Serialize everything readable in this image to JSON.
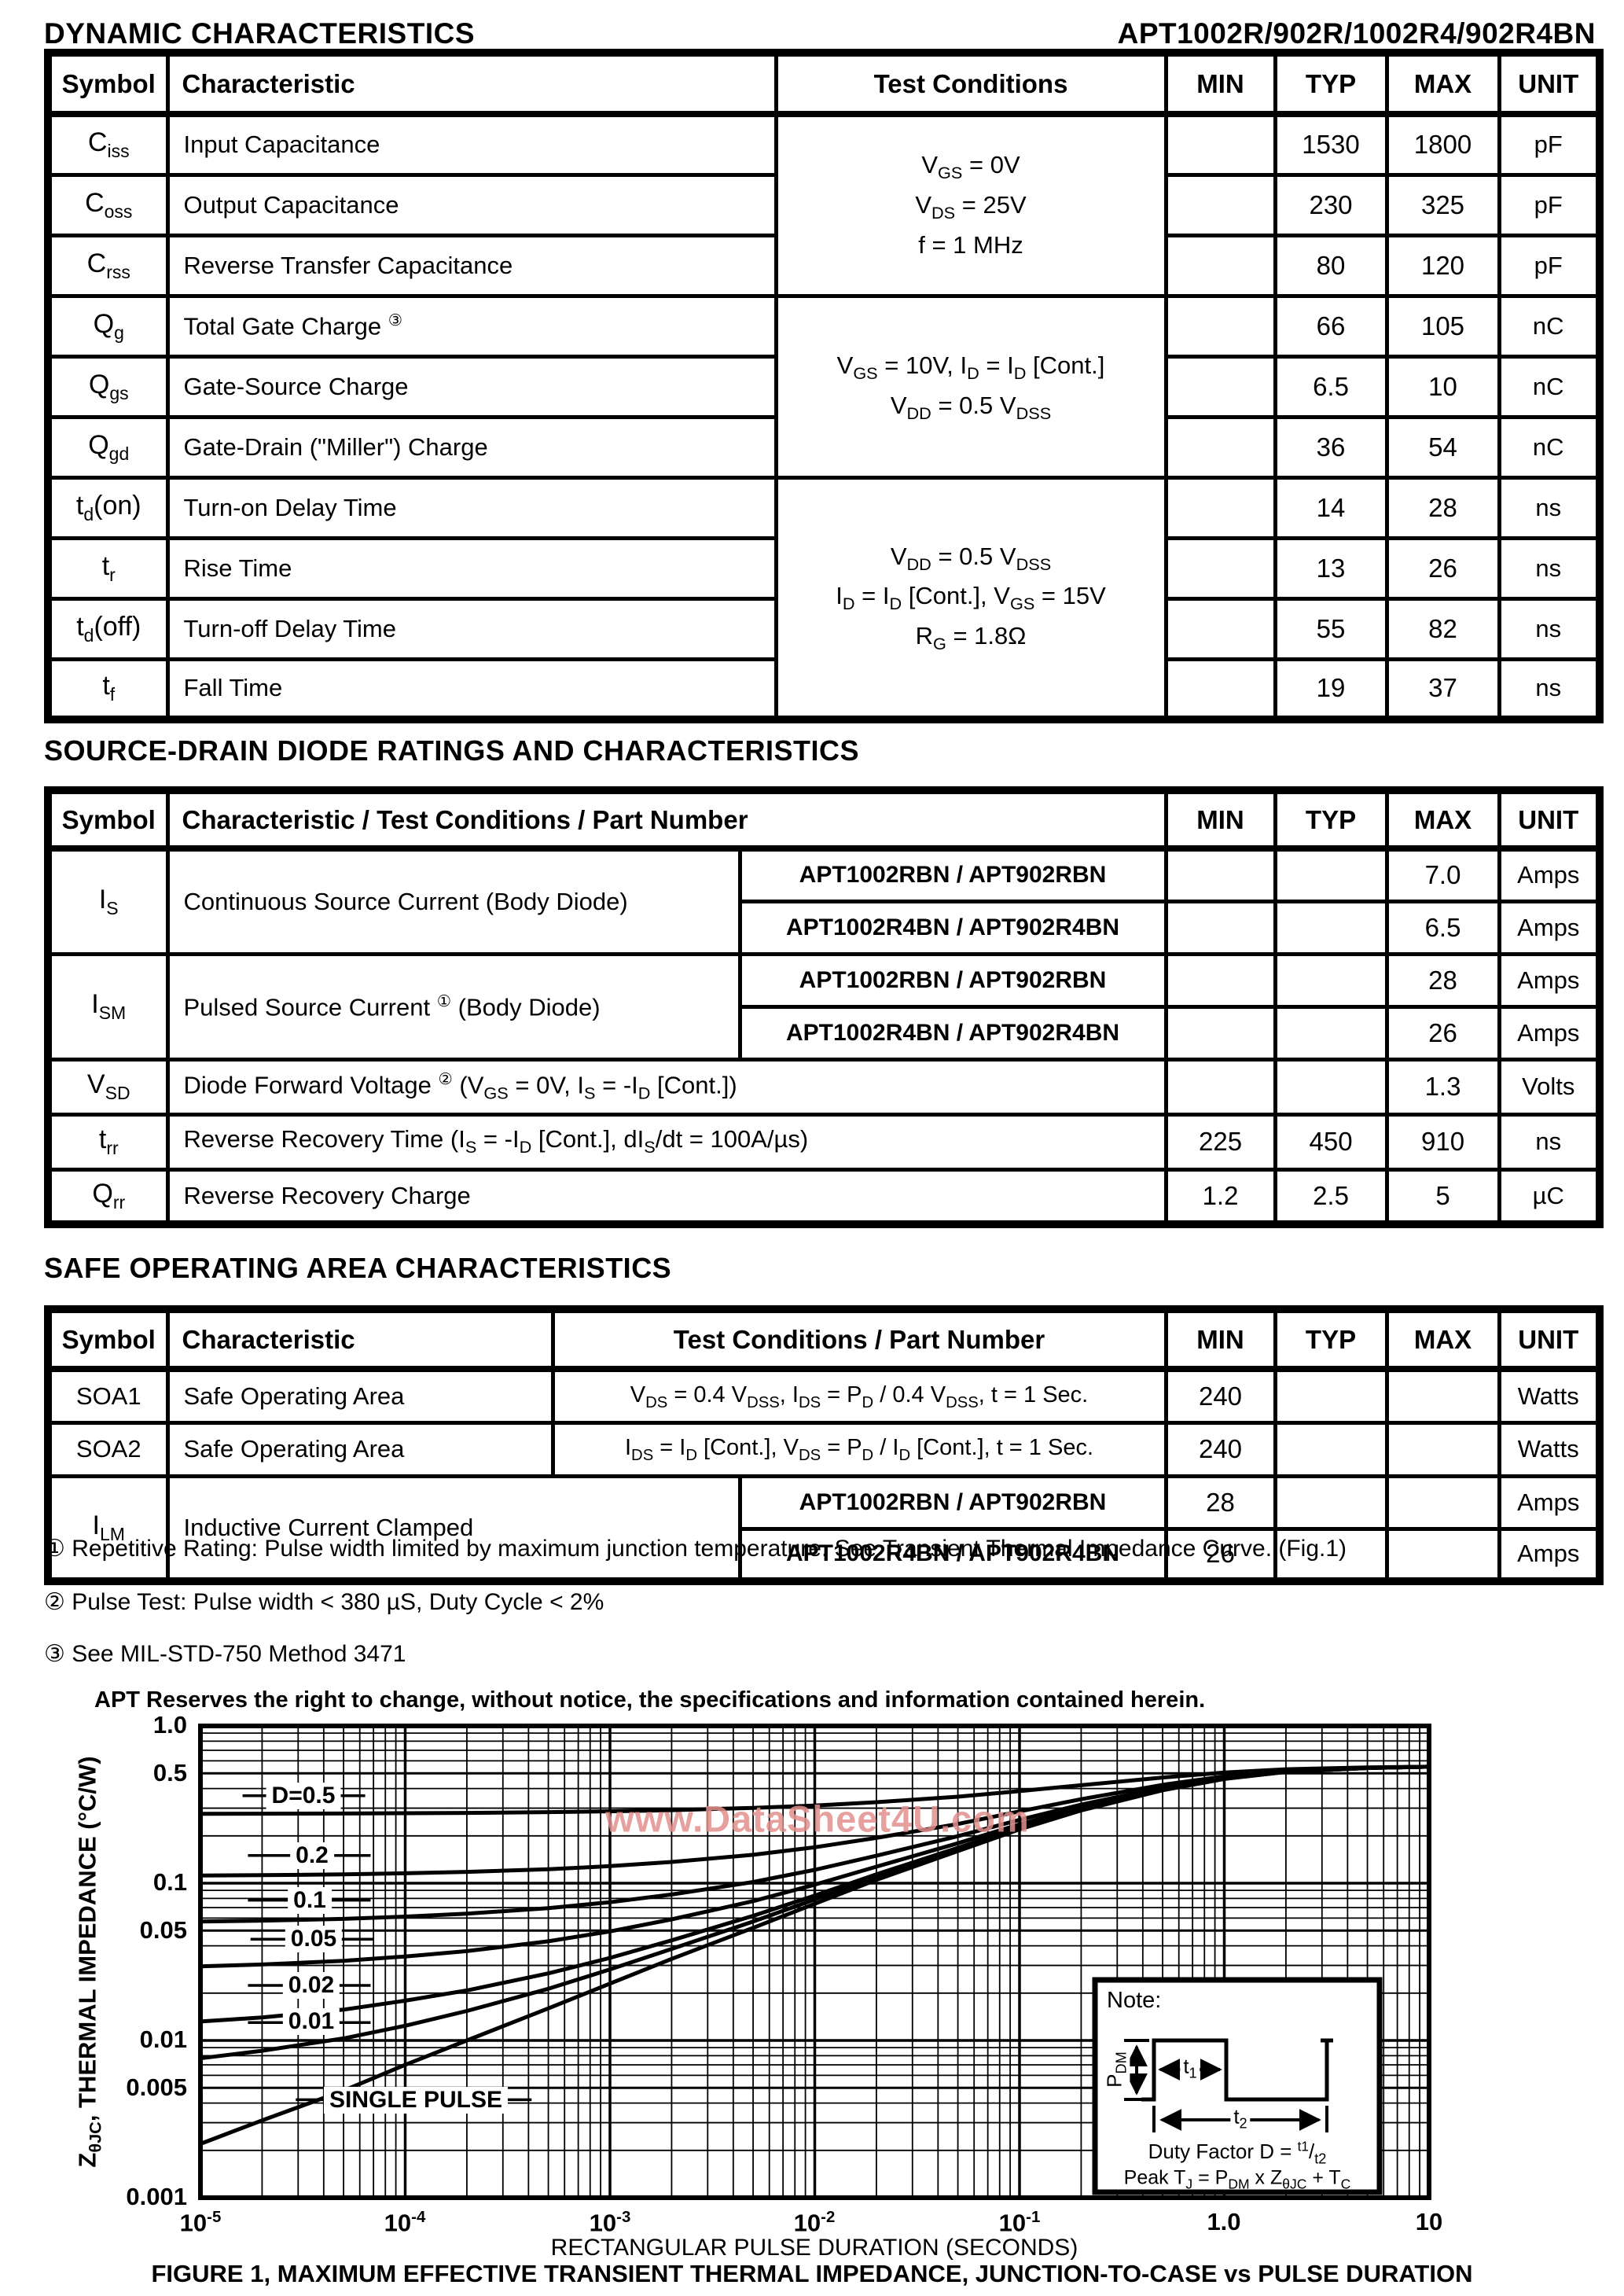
{
  "header": {
    "left": "DYNAMIC CHARACTERISTICS",
    "right": "APT1002R/902R/1002R4/902R4BN"
  },
  "dynamic_table": {
    "headers": [
      "Symbol",
      "Characteristic",
      "Test Conditions",
      "MIN",
      "TYP",
      "MAX",
      "UNIT"
    ],
    "conditions": [
      {
        "lines": [
          "V~GS~ = 0V",
          "V~DS~ = 25V",
          "f = 1 MHz"
        ]
      },
      {
        "lines": [
          "V~GS~ = 10V, I~D~ = I~D~ [Cont.]",
          "V~DD~ = 0.5 V~DSS~"
        ]
      },
      {
        "lines": [
          "V~DD~ = 0.5 V~DSS~",
          "I~D~ = I~D~ [Cont.], V~GS~ = 15V",
          "R~G~ = 1.8Ω"
        ]
      }
    ],
    "rows": [
      {
        "sym": "C~iss~",
        "char": "Input Capacitance",
        "min": "",
        "typ": "1530",
        "max": "1800",
        "unit": "pF"
      },
      {
        "sym": "C~oss~",
        "char": "Output Capacitance",
        "min": "",
        "typ": "230",
        "max": "325",
        "unit": "pF"
      },
      {
        "sym": "C~rss~",
        "char": "Reverse Transfer Capacitance",
        "min": "",
        "typ": "80",
        "max": "120",
        "unit": "pF"
      },
      {
        "sym": "Q~g~",
        "char": "Total Gate Charge ^③^",
        "min": "",
        "typ": "66",
        "max": "105",
        "unit": "nC"
      },
      {
        "sym": "Q~gs~",
        "char": "Gate-Source Charge",
        "min": "",
        "typ": "6.5",
        "max": "10",
        "unit": "nC"
      },
      {
        "sym": "Q~gd~",
        "char": "Gate-Drain (\"Miller\") Charge",
        "min": "",
        "typ": "36",
        "max": "54",
        "unit": "nC"
      },
      {
        "sym": "t~d~(on)",
        "char": "Turn-on Delay Time",
        "min": "",
        "typ": "14",
        "max": "28",
        "unit": "ns"
      },
      {
        "sym": "t~r~",
        "char": "Rise Time",
        "min": "",
        "typ": "13",
        "max": "26",
        "unit": "ns"
      },
      {
        "sym": "t~d~(off)",
        "char": "Turn-off Delay Time",
        "min": "",
        "typ": "55",
        "max": "82",
        "unit": "ns"
      },
      {
        "sym": "t~f~",
        "char": "Fall Time",
        "min": "",
        "typ": "19",
        "max": "37",
        "unit": "ns"
      }
    ]
  },
  "diode_section": {
    "title": "SOURCE-DRAIN DIODE RATINGS AND CHARACTERISTICS",
    "headers": [
      "Symbol",
      "Characteristic / Test Conditions / Part Number",
      "MIN",
      "TYP",
      "MAX",
      "UNIT"
    ],
    "is": {
      "sym": "I~S~",
      "char": "Continuous Source Current   (Body Diode)",
      "parts": [
        {
          "part": "APT1002RBN / APT902RBN",
          "min": "",
          "typ": "",
          "max": "7.0",
          "unit": "Amps"
        },
        {
          "part": "APT1002R4BN / APT902R4BN",
          "min": "",
          "typ": "",
          "max": "6.5",
          "unit": "Amps"
        }
      ]
    },
    "ism": {
      "sym": "I~SM~",
      "char": "Pulsed Source Current ^①^ (Body Diode)",
      "parts": [
        {
          "part": "APT1002RBN / APT902RBN",
          "min": "",
          "typ": "",
          "max": "28",
          "unit": "Amps"
        },
        {
          "part": "APT1002R4BN / APT902R4BN",
          "min": "",
          "typ": "",
          "max": "26",
          "unit": "Amps"
        }
      ]
    },
    "vsd": {
      "sym": "V~SD~",
      "char": "Diode Forward Voltage ^②^ (V~GS~ = 0V,  I~S~ = -I~D~ [Cont.])",
      "min": "",
      "typ": "",
      "max": "1.3",
      "unit": "Volts"
    },
    "trr": {
      "sym": "t~rr~",
      "char": "Reverse Recovery Time  (I~S~ = -I~D~ [Cont.],  dI~S~/dt = 100A/µs)",
      "min": "225",
      "typ": "450",
      "max": "910",
      "unit": "ns"
    },
    "qrr": {
      "sym": "Q~rr~",
      "char": "Reverse Recovery Charge",
      "min": "1.2",
      "typ": "2.5",
      "max": "5",
      "unit": "µC"
    }
  },
  "soa_section": {
    "title": "SAFE OPERATING AREA CHARACTERISTICS",
    "headers": [
      "Symbol",
      "Characteristic",
      "Test Conditions / Part Number",
      "MIN",
      "TYP",
      "MAX",
      "UNIT"
    ],
    "rows": [
      {
        "sym": "SOA1",
        "char": "Safe Operating Area",
        "cond": "V~DS~ = 0.4 V~DSS~, I~DS~ = P~D~ / 0.4 V~DSS~, t = 1 Sec.",
        "min": "240",
        "typ": "",
        "max": "",
        "unit": "Watts"
      },
      {
        "sym": "SOA2",
        "char": "Safe Operating Area",
        "cond": "I~DS~ = I~D~ [Cont.], V~DS~ = P~D~ / I~D~ [Cont.], t = 1 Sec.",
        "min": "240",
        "typ": "",
        "max": "",
        "unit": "Watts"
      }
    ],
    "ilm": {
      "sym": "I~LM~",
      "char": "Inductive Current Clamped",
      "parts": [
        {
          "part": "APT1002RBN / APT902RBN",
          "min": "28",
          "typ": "",
          "max": "",
          "unit": "Amps"
        },
        {
          "part": "APT1002R4BN / APT902R4BN",
          "min": "26",
          "typ": "",
          "max": "",
          "unit": "Amps"
        }
      ]
    }
  },
  "footnotes": [
    "① Repetitive Rating: Pulse width limited by maximum junction temperature. See Transient Thermal Impedance Curve. (Fig.1)",
    "② Pulse Test: Pulse width < 380 µS, Duty Cycle < 2%",
    "③ See MIL-STD-750 Method 3471"
  ],
  "disclaimer": "APT Reserves the right to change, without notice, the specifications and information contained herein.",
  "watermark": {
    "text": "www.DataSheet4U.com",
    "color": "#e2908e"
  },
  "chart_data": {
    "type": "line",
    "title": "FIGURE 1, MAXIMUM EFFECTIVE TRANSIENT THERMAL IMPEDANCE, JUNCTION-TO-CASE vs PULSE DURATION",
    "xlabel": "RECTANGULAR PULSE DURATION (SECONDS)",
    "ylabel": "Z~θJC~, THERMAL IMPEDANCE (°C/W)",
    "x_scale": "log",
    "y_scale": "log",
    "grid": true,
    "xlim": [
      1e-05,
      10
    ],
    "ylim": [
      0.001,
      1.0
    ],
    "x_ticks": [
      {
        "v": 1e-05,
        "label": "10^-5^"
      },
      {
        "v": 0.0001,
        "label": "10^-4^"
      },
      {
        "v": 0.001,
        "label": "10^-3^"
      },
      {
        "v": 0.01,
        "label": "10^-2^"
      },
      {
        "v": 0.1,
        "label": "10^-1^"
      },
      {
        "v": 1,
        "label": "1.0"
      },
      {
        "v": 10,
        "label": "10"
      }
    ],
    "y_ticks": [
      {
        "v": 1.0,
        "label": "1.0"
      },
      {
        "v": 0.5,
        "label": "0.5"
      },
      {
        "v": 0.1,
        "label": "0.1"
      },
      {
        "v": 0.05,
        "label": "0.05"
      },
      {
        "v": 0.01,
        "label": "0.01"
      },
      {
        "v": 0.005,
        "label": "0.005"
      },
      {
        "v": 0.001,
        "label": "0.001"
      }
    ],
    "x": [
      1e-05,
      2e-05,
      5e-05,
      0.0001,
      0.0002,
      0.0005,
      0.001,
      0.002,
      0.005,
      0.01,
      0.02,
      0.05,
      0.1,
      0.2,
      0.5,
      1,
      2,
      5,
      10
    ],
    "series": [
      {
        "name": "D=0.5",
        "values": [
          0.2761,
          0.2766,
          0.2774,
          0.2785,
          0.28,
          0.283,
          0.2865,
          0.2915,
          0.301,
          0.312,
          0.3275,
          0.355,
          0.385,
          0.42,
          0.47,
          0.505,
          0.53,
          0.545,
          0.55
        ]
      },
      {
        "name": "0.2",
        "values": [
          0.1118,
          0.1125,
          0.1138,
          0.1156,
          0.118,
          0.1228,
          0.1284,
          0.1364,
          0.1516,
          0.1692,
          0.194,
          0.238,
          0.286,
          0.342,
          0.422,
          0.478,
          0.518,
          0.542,
          0.55
        ]
      },
      {
        "name": "0.1",
        "values": [
          0.057,
          0.0578,
          0.0593,
          0.0613,
          0.064,
          0.0694,
          0.0757,
          0.0847,
          0.1018,
          0.1216,
          0.1495,
          0.199,
          0.253,
          0.316,
          0.406,
          0.469,
          0.514,
          0.541,
          0.55
        ]
      },
      {
        "name": "0.05",
        "values": [
          0.0296,
          0.0304,
          0.0321,
          0.0342,
          0.037,
          0.0427,
          0.0494,
          0.0589,
          0.0769,
          0.0978,
          0.1273,
          0.1795,
          0.2365,
          0.303,
          0.398,
          0.4645,
          0.512,
          0.5405,
          0.55
        ]
      },
      {
        "name": "0.02",
        "values": [
          0.0132,
          0.014,
          0.0157,
          0.0179,
          0.0208,
          0.0267,
          0.0335,
          0.0433,
          0.062,
          0.0835,
          0.1139,
          0.1678,
          0.2266,
          0.2952,
          0.3932,
          0.4618,
          0.5108,
          0.5402,
          0.55
        ]
      },
      {
        "name": "0.01",
        "values": [
          0.0077,
          0.0086,
          0.0103,
          0.0124,
          0.0154,
          0.0213,
          0.0283,
          0.0382,
          0.057,
          0.0788,
          0.1095,
          0.1639,
          0.2233,
          0.2926,
          0.3916,
          0.4609,
          0.5104,
          0.5401,
          0.55
        ]
      },
      {
        "name": "SINGLE PULSE",
        "values": [
          0.0022,
          0.0031,
          0.0048,
          0.007,
          0.01,
          0.016,
          0.023,
          0.033,
          0.052,
          0.074,
          0.105,
          0.16,
          0.22,
          0.29,
          0.39,
          0.46,
          0.51,
          0.54,
          0.55
        ]
      }
    ],
    "curve_labels": [
      {
        "text": "D=0.5",
        "x": 3.2e-05,
        "y": 0.36
      },
      {
        "text": "0.2",
        "x": 3.4e-05,
        "y": 0.15
      },
      {
        "text": "0.1",
        "x": 3.4e-05,
        "y": 0.078
      },
      {
        "text": "0.05",
        "x": 3.5e-05,
        "y": 0.044
      },
      {
        "text": "0.02",
        "x": 3.4e-05,
        "y": 0.0224
      },
      {
        "text": "0.01",
        "x": 3.4e-05,
        "y": 0.013
      },
      {
        "text": "SINGLE PULSE",
        "x": 0.00011,
        "y": 0.0042
      }
    ],
    "note": {
      "title": "Note:",
      "pdm": "P~DM~",
      "t1": "t~1~",
      "t2": "t~2~",
      "duty": "Duty Factor  D = ^t1^/~t2~",
      "peak": "Peak T~J~ = P~DM~ x Z~θJC~ + T~C~"
    }
  }
}
